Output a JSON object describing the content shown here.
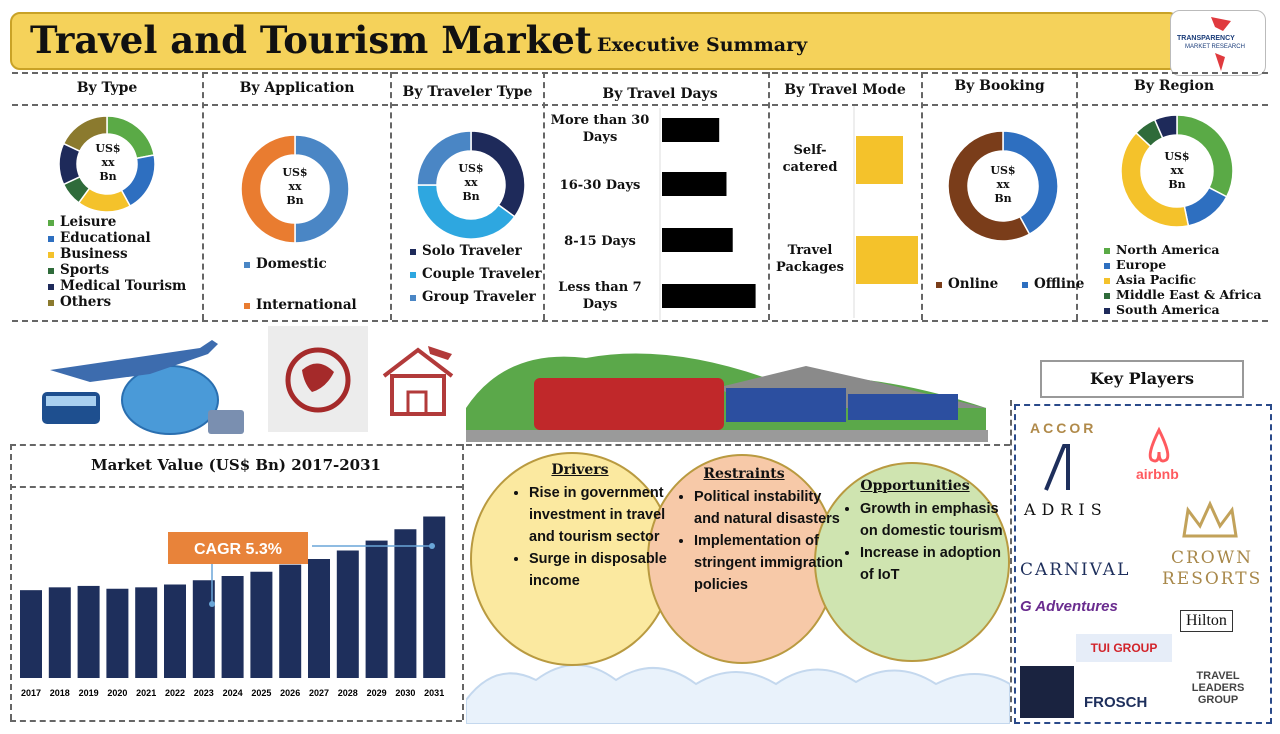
{
  "header": {
    "title": "Travel and Tourism Market",
    "subtitle": "Executive Summary",
    "logo_line1": "TRANSPARENCY",
    "logo_line2": "MARKET RESEARCH"
  },
  "sections": {
    "type": {
      "heading": "By Type",
      "center": [
        "US$",
        "xx",
        "Bn"
      ],
      "legend": [
        "Leisure",
        "Educational",
        "Business",
        "Sports",
        "Medical Tourism",
        "Others"
      ]
    },
    "application": {
      "heading": "By Application",
      "center": [
        "US$",
        "xx",
        "Bn"
      ],
      "legend": [
        "Domestic",
        "International"
      ]
    },
    "traveler": {
      "heading": "By Traveler Type",
      "center": [
        "US$",
        "xx",
        "Bn"
      ],
      "legend": [
        "Solo Traveler",
        "Couple Traveler",
        "Group Traveler"
      ]
    },
    "days": {
      "heading": "By Travel Days",
      "labels": [
        "More than 30 Days",
        "16-30 Days",
        "8-15 Days",
        "Less than 7 Days"
      ]
    },
    "mode": {
      "heading": "By Travel Mode",
      "labels": [
        "Self-catered",
        "Travel Packages"
      ]
    },
    "booking": {
      "heading": "By Booking",
      "center": [
        "US$",
        "xx",
        "Bn"
      ],
      "legend": [
        "Online",
        "Offline"
      ]
    },
    "region": {
      "heading": "By Region",
      "center": [
        "US$",
        "xx",
        "Bn"
      ],
      "legend": [
        "North America",
        "Europe",
        "Asia Pacific",
        "Middle East & Africa",
        "South America"
      ]
    }
  },
  "market": {
    "title": "Market Value (US$ Bn) 2017-2031",
    "cagr": "CAGR 5.3%"
  },
  "drivers": {
    "title": "Drivers",
    "items": [
      "Rise in government investment in travel and tourism sector",
      "Surge in disposable income"
    ]
  },
  "restraints": {
    "title": "Restraints",
    "items": [
      "Political instability and natural disasters",
      "Implementation of stringent immigration policies"
    ]
  },
  "opportunities": {
    "title": "Opportunities",
    "items": [
      "Growth in emphasis on domestic tourism",
      "Increase in adoption of IoT"
    ]
  },
  "key_players": {
    "title": "Key Players",
    "names": [
      "ACCOR",
      "airbnb",
      "ADRIS",
      "CARNIVAL",
      "CROWN RESORTS",
      "G Adventures",
      "Hilton",
      "TUI GROUP",
      "FROSCH",
      "TRAVEL LEADERS GROUP"
    ]
  },
  "colors": {
    "green": "#5aaa46",
    "blue": "#2e6fc0",
    "yellow": "#f4c22b",
    "darkgreen": "#2f6b3a",
    "navy": "#1e2a5a",
    "olive": "#8b7a2e",
    "orange": "#e97c30",
    "lightblue": "#2ea7e0",
    "midblue": "#4a86c5",
    "brown": "#7a3d1a",
    "bar": "#1e2f5c",
    "cagr": "#e8833a"
  },
  "chart_data": [
    {
      "type": "pie",
      "title": "By Type",
      "labels": [
        "Leisure",
        "Educational",
        "Business",
        "Sports",
        "Medical Tourism",
        "Others"
      ],
      "values": [
        22,
        20,
        18,
        8,
        14,
        18
      ]
    },
    {
      "type": "pie",
      "title": "By Application",
      "labels": [
        "Domestic",
        "International"
      ],
      "values": [
        50,
        50
      ]
    },
    {
      "type": "pie",
      "title": "By Traveler Type",
      "labels": [
        "Solo Traveler",
        "Couple Traveler",
        "Group Traveler"
      ],
      "values": [
        35,
        40,
        25
      ]
    },
    {
      "type": "bar",
      "title": "By Travel Days",
      "categories": [
        "More than 30 Days",
        "16-30 Days",
        "8-15 Days",
        "Less than 7 Days"
      ],
      "values": [
        55,
        62,
        68,
        90
      ]
    },
    {
      "type": "bar",
      "title": "By Travel Mode",
      "categories": [
        "Self-catered",
        "Travel Packages"
      ],
      "values": [
        47,
        62
      ]
    },
    {
      "type": "pie",
      "title": "By Booking",
      "labels": [
        "Online",
        "Offline"
      ],
      "values": [
        42,
        58
      ]
    },
    {
      "type": "pie",
      "title": "By Region",
      "labels": [
        "North America",
        "Europe",
        "Asia Pacific",
        "Middle East & Africa",
        "South America"
      ],
      "values": [
        30,
        13,
        37,
        6,
        6
      ]
    },
    {
      "type": "bar",
      "title": "Market Value (US$ Bn) 2017-2031",
      "categories": [
        "2017",
        "2018",
        "2019",
        "2020",
        "2021",
        "2022",
        "2023",
        "2024",
        "2025",
        "2026",
        "2027",
        "2028",
        "2029",
        "2030",
        "2031"
      ],
      "values": [
        62,
        64,
        65,
        63,
        64,
        66,
        69,
        72,
        75,
        80,
        84,
        90,
        97,
        105,
        114
      ]
    }
  ]
}
